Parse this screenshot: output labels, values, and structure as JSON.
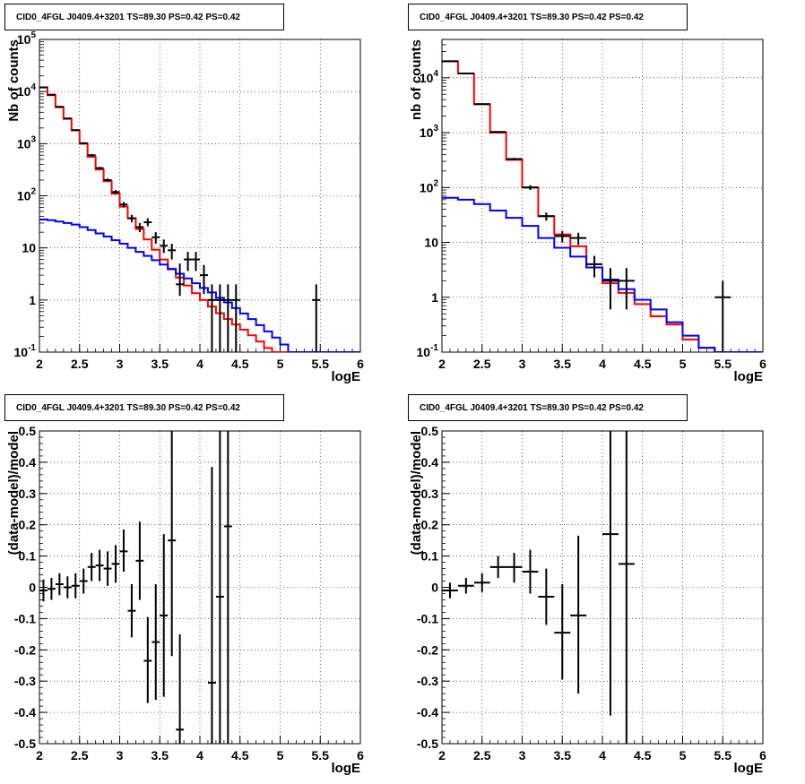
{
  "panels": [
    {
      "id": "p1",
      "title": "CID0_4FGL J0409.4+3201 TS=89.30 PS=0.42 PS=0.42",
      "xlabel": "logE",
      "ylabel": "Nb of counts"
    },
    {
      "id": "p2",
      "title": "CID0_4FGL J0409.4+3201 TS=89.30 PS=0.42 PS=0.42",
      "xlabel": "logE",
      "ylabel": "nb of counts"
    },
    {
      "id": "p3",
      "title": "CID0_4FGL J0409.4+3201 TS=89.30 PS=0.42 PS=0.42",
      "xlabel": "logE",
      "ylabel": "(data-model)/model"
    },
    {
      "id": "p4",
      "title": "CID0_4FGL J0409.4+3201 TS=89.30 PS=0.42 PS=0.42",
      "xlabel": "logE",
      "ylabel": "(data-model)/model"
    }
  ],
  "chart_data": [
    {
      "type": "line",
      "id": "p1",
      "yscale": "log",
      "xlim": [
        2,
        6
      ],
      "ylim": [
        0.1,
        100000
      ],
      "x_ticks": [
        "2",
        "2.5",
        "3",
        "3.5",
        "4",
        "4.5",
        "5",
        "5.5",
        "6"
      ],
      "y_ticks": [
        "10^-1",
        "1",
        "10",
        "10^2",
        "10^3",
        "10^4",
        "10^5"
      ],
      "grid": true,
      "bin_edges": [
        2.0,
        2.1,
        2.2,
        2.3,
        2.4,
        2.5,
        2.6,
        2.7,
        2.8,
        2.9,
        3.0,
        3.1,
        3.2,
        3.3,
        3.4,
        3.5,
        3.6,
        3.7,
        3.8,
        3.9,
        4.0,
        4.1,
        4.2,
        4.3,
        4.4,
        4.5,
        4.6,
        4.7,
        4.8,
        4.9,
        5.0,
        5.1,
        5.2,
        5.3,
        5.4,
        5.5,
        5.6,
        5.7,
        5.8,
        5.9,
        6.0
      ],
      "series": [
        {
          "color": "#ff0000",
          "values": [
            12000,
            8500,
            5000,
            3000,
            1800,
            1000,
            560,
            320,
            190,
            110,
            62,
            37,
            23,
            14.5,
            9.2,
            6,
            4,
            2.7,
            1.9,
            1.35,
            1.0,
            0.75,
            0.56,
            0.43,
            0.34,
            0.27,
            0.21,
            0.16,
            0.12,
            0.1,
            0.1,
            0.1,
            0.1,
            0.1,
            0.1,
            0.1,
            0.1,
            0.1,
            0.1,
            0.1
          ]
        },
        {
          "color": "#0000ff",
          "values": [
            35,
            34,
            32,
            30,
            28,
            25,
            22,
            19,
            16.5,
            14,
            12,
            10,
            8.4,
            7,
            5.8,
            4.8,
            3.9,
            3.2,
            2.6,
            2.1,
            1.7,
            1.4,
            1.1,
            0.9,
            0.7,
            0.55,
            0.43,
            0.33,
            0.25,
            0.19,
            0.14,
            0.1,
            0.1,
            0.1,
            0.1,
            0.1,
            0.1,
            0.1,
            0.1,
            0.1
          ]
        }
      ],
      "points": [
        {
          "x": 2.05,
          "y": 12000,
          "lo": 11900,
          "hi": 12100
        },
        {
          "x": 2.15,
          "y": 8700,
          "lo": 8600,
          "hi": 8800
        },
        {
          "x": 2.25,
          "y": 5100,
          "lo": 5030,
          "hi": 5170
        },
        {
          "x": 2.35,
          "y": 3050,
          "lo": 3000,
          "hi": 3100
        },
        {
          "x": 2.45,
          "y": 1820,
          "lo": 1780,
          "hi": 1860
        },
        {
          "x": 2.55,
          "y": 1020,
          "lo": 990,
          "hi": 1050
        },
        {
          "x": 2.65,
          "y": 600,
          "lo": 575,
          "hi": 625
        },
        {
          "x": 2.75,
          "y": 340,
          "lo": 322,
          "hi": 358
        },
        {
          "x": 2.85,
          "y": 200,
          "lo": 186,
          "hi": 214
        },
        {
          "x": 2.95,
          "y": 118,
          "lo": 107,
          "hi": 129
        },
        {
          "x": 3.05,
          "y": 68,
          "lo": 60,
          "hi": 76
        },
        {
          "x": 3.15,
          "y": 37,
          "lo": 31,
          "hi": 43
        },
        {
          "x": 3.25,
          "y": 25,
          "lo": 20,
          "hi": 30
        },
        {
          "x": 3.35,
          "y": 31,
          "lo": 26,
          "hi": 37
        },
        {
          "x": 3.45,
          "y": 16,
          "lo": 12,
          "hi": 20
        },
        {
          "x": 3.55,
          "y": 11,
          "lo": 8,
          "hi": 14.5
        },
        {
          "x": 3.65,
          "y": 9,
          "lo": 6,
          "hi": 12
        },
        {
          "x": 3.75,
          "y": 2,
          "lo": 1.2,
          "hi": 5
        },
        {
          "x": 3.85,
          "y": 6,
          "lo": 3.6,
          "hi": 8.4
        },
        {
          "x": 3.95,
          "y": 6,
          "lo": 3.6,
          "hi": 8.4
        },
        {
          "x": 4.05,
          "y": 3,
          "lo": 1.3,
          "hi": 4.7
        },
        {
          "x": 4.15,
          "y": 1,
          "lo": 0.1,
          "hi": 2
        },
        {
          "x": 4.25,
          "y": 1,
          "lo": 0.1,
          "hi": 2
        },
        {
          "x": 4.35,
          "y": 1,
          "lo": 0.1,
          "hi": 2
        },
        {
          "x": 4.45,
          "y": 1,
          "lo": 0.1,
          "hi": 2
        },
        {
          "x": 5.45,
          "y": 1,
          "lo": 0.1,
          "hi": 2
        }
      ]
    },
    {
      "type": "line",
      "id": "p2",
      "yscale": "log",
      "xlim": [
        2,
        6
      ],
      "ylim": [
        0.1,
        50000
      ],
      "x_ticks": [
        "2",
        "2.5",
        "3",
        "3.5",
        "4",
        "4.5",
        "5",
        "5.5",
        "6"
      ],
      "y_ticks": [
        "10^-1",
        "1",
        "10",
        "10^2",
        "10^3",
        "10^4"
      ],
      "grid": true,
      "bin_edges": [
        2.0,
        2.2,
        2.4,
        2.6,
        2.8,
        3.0,
        3.2,
        3.4,
        3.6,
        3.8,
        4.0,
        4.2,
        4.4,
        4.6,
        4.8,
        5.0,
        5.2,
        5.4,
        5.6,
        5.8,
        6.0
      ],
      "series": [
        {
          "color": "#ff0000",
          "values": [
            20000,
            12000,
            3300,
            1000,
            320,
            100,
            30,
            14,
            8.5,
            3.5,
            1.8,
            1.2,
            0.75,
            0.45,
            0.32,
            0.17,
            0.12,
            0.1,
            0.1,
            0.1
          ]
        },
        {
          "color": "#0000ff",
          "values": [
            65,
            60,
            50,
            38,
            28,
            20,
            12,
            8,
            5.5,
            3.5,
            2.1,
            1.4,
            0.9,
            0.6,
            0.35,
            0.2,
            0.12,
            0.1,
            0.1,
            0.1
          ]
        }
      ],
      "points": [
        {
          "x": 2.1,
          "y": 20000,
          "lo": 19850,
          "hi": 20150
        },
        {
          "x": 2.3,
          "y": 12000,
          "lo": 11880,
          "hi": 12120
        },
        {
          "x": 2.5,
          "y": 3300,
          "lo": 3240,
          "hi": 3360
        },
        {
          "x": 2.7,
          "y": 1030,
          "lo": 995,
          "hi": 1065
        },
        {
          "x": 2.9,
          "y": 330,
          "lo": 312,
          "hi": 348
        },
        {
          "x": 3.1,
          "y": 100,
          "lo": 90,
          "hi": 110
        },
        {
          "x": 3.3,
          "y": 30,
          "lo": 25,
          "hi": 35
        },
        {
          "x": 3.5,
          "y": 13,
          "lo": 10,
          "hi": 16
        },
        {
          "x": 3.7,
          "y": 12,
          "lo": 9,
          "hi": 15
        },
        {
          "x": 3.9,
          "y": 4,
          "lo": 2.3,
          "hi": 5.7
        },
        {
          "x": 4.1,
          "y": 2,
          "lo": 0.6,
          "hi": 3.4
        },
        {
          "x": 4.3,
          "y": 2,
          "lo": 0.6,
          "hi": 3.4
        },
        {
          "x": 5.5,
          "y": 1,
          "lo": 0.1,
          "hi": 2
        }
      ]
    },
    {
      "type": "scatter",
      "id": "p3",
      "yscale": "linear",
      "xlim": [
        2,
        6
      ],
      "ylim": [
        -0.5,
        0.5
      ],
      "x_ticks": [
        "2",
        "2.5",
        "3",
        "3.5",
        "4",
        "4.5",
        "5",
        "5.5",
        "6"
      ],
      "y_ticks": [
        "-0.5",
        "-0.4",
        "-0.3",
        "-0.2",
        "-0.1",
        "0",
        "0.1",
        "0.2",
        "0.3",
        "0.4",
        "0.5"
      ],
      "grid": true,
      "points": [
        {
          "x": 2.05,
          "y": -0.01,
          "lo": -0.045,
          "hi": 0.025
        },
        {
          "x": 2.15,
          "y": -0.005,
          "lo": -0.04,
          "hi": 0.03
        },
        {
          "x": 2.25,
          "y": 0.01,
          "lo": -0.025,
          "hi": 0.045
        },
        {
          "x": 2.35,
          "y": 0.0,
          "lo": -0.035,
          "hi": 0.035
        },
        {
          "x": 2.45,
          "y": 0.005,
          "lo": -0.035,
          "hi": 0.045
        },
        {
          "x": 2.55,
          "y": 0.02,
          "lo": -0.02,
          "hi": 0.06
        },
        {
          "x": 2.65,
          "y": 0.065,
          "lo": 0.02,
          "hi": 0.11
        },
        {
          "x": 2.75,
          "y": 0.07,
          "lo": 0.02,
          "hi": 0.12
        },
        {
          "x": 2.85,
          "y": 0.06,
          "lo": 0.005,
          "hi": 0.115
        },
        {
          "x": 2.95,
          "y": 0.075,
          "lo": 0.015,
          "hi": 0.135
        },
        {
          "x": 3.05,
          "y": 0.115,
          "lo": 0.05,
          "hi": 0.185
        },
        {
          "x": 3.15,
          "y": -0.075,
          "lo": -0.16,
          "hi": 0.01
        },
        {
          "x": 3.25,
          "y": 0.085,
          "lo": -0.04,
          "hi": 0.21
        },
        {
          "x": 3.35,
          "y": -0.235,
          "lo": -0.37,
          "hi": -0.095
        },
        {
          "x": 3.45,
          "y": -0.175,
          "lo": -0.36,
          "hi": 0.01
        },
        {
          "x": 3.55,
          "y": -0.09,
          "lo": -0.35,
          "hi": 0.17
        },
        {
          "x": 3.65,
          "y": 0.15,
          "lo": -0.22,
          "hi": 0.52
        },
        {
          "x": 3.75,
          "y": -0.455,
          "lo": -0.56,
          "hi": -0.15
        },
        {
          "x": 4.15,
          "y": -0.305,
          "lo": -0.56,
          "hi": 0.385
        },
        {
          "x": 4.25,
          "y": -0.03,
          "lo": -0.56,
          "hi": 0.56
        },
        {
          "x": 4.35,
          "y": 0.195,
          "lo": -0.56,
          "hi": 0.56
        }
      ]
    },
    {
      "type": "scatter",
      "id": "p4",
      "yscale": "linear",
      "xlim": [
        2,
        6
      ],
      "ylim": [
        -0.5,
        0.5
      ],
      "x_ticks": [
        "2",
        "2.5",
        "3",
        "3.5",
        "4",
        "4.5",
        "5",
        "5.5",
        "6"
      ],
      "y_ticks": [
        "-0.5",
        "-0.4",
        "-0.3",
        "-0.2",
        "-0.1",
        "0",
        "0.1",
        "0.2",
        "0.3",
        "0.4",
        "0.5"
      ],
      "grid": true,
      "points": [
        {
          "x": 2.1,
          "y": -0.01,
          "lo": -0.035,
          "hi": 0.015
        },
        {
          "x": 2.3,
          "y": 0.005,
          "lo": -0.02,
          "hi": 0.03
        },
        {
          "x": 2.5,
          "y": 0.015,
          "lo": -0.015,
          "hi": 0.045
        },
        {
          "x": 2.7,
          "y": 0.065,
          "lo": 0.03,
          "hi": 0.1
        },
        {
          "x": 2.9,
          "y": 0.065,
          "lo": 0.015,
          "hi": 0.11
        },
        {
          "x": 3.1,
          "y": 0.05,
          "lo": -0.02,
          "hi": 0.12
        },
        {
          "x": 3.3,
          "y": -0.03,
          "lo": -0.12,
          "hi": 0.06
        },
        {
          "x": 3.5,
          "y": -0.145,
          "lo": -0.295,
          "hi": 0.01
        },
        {
          "x": 3.7,
          "y": -0.09,
          "lo": -0.34,
          "hi": 0.165
        },
        {
          "x": 4.1,
          "y": 0.17,
          "lo": -0.41,
          "hi": 0.56
        },
        {
          "x": 4.3,
          "y": 0.075,
          "lo": -0.56,
          "hi": 0.56
        }
      ]
    }
  ]
}
